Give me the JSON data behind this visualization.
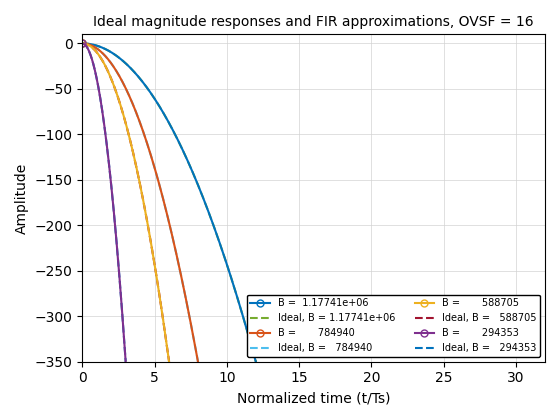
{
  "title": "Ideal magnitude responses and FIR approximations, OVSF = 16",
  "xlabel": "Normalized time (t/Ts)",
  "ylabel": "Amplitude",
  "xlim": [
    0,
    32
  ],
  "ylim": [
    -350,
    10
  ],
  "yticks": [
    0,
    -50,
    -100,
    -150,
    -200,
    -250,
    -300,
    -350
  ],
  "xticks": [
    0,
    5,
    10,
    15,
    20,
    25,
    30
  ],
  "B_values": [
    1177410,
    784940,
    588705,
    294353
  ],
  "B_labels": [
    "1.17741e+06",
    "784940",
    "588705",
    "294353"
  ],
  "OVSF": 16,
  "solid_colors": [
    "#0072BD",
    "#D95319",
    "#EDB120",
    "#7E2F8E"
  ],
  "dashed_colors": [
    "#77AC30",
    "#4DBEEE",
    "#A2142F",
    "#0072BD"
  ],
  "background": "#ffffff",
  "grid_color": "#d3d3d3"
}
